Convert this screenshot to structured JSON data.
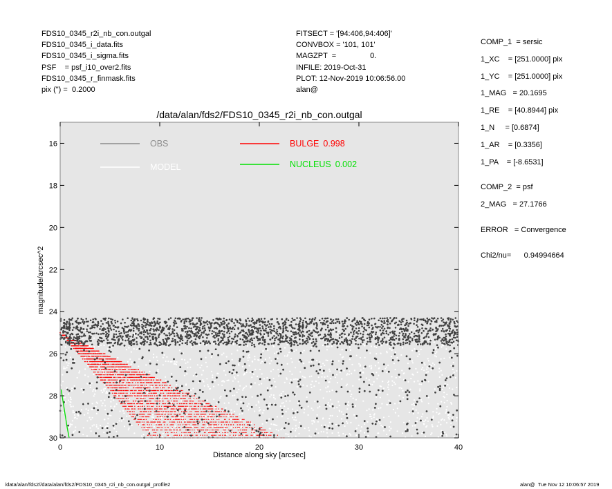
{
  "header_left": [
    "FDS10_0345_r2i_nb_con.outgal",
    "FDS10_0345_i_data.fits",
    "FDS10_0345_i_sigma.fits",
    "PSF    = psf_i10_over2.fits",
    "FDS10_0345_r_finmask.fits",
    "pix (\") =  0.2000"
  ],
  "header_mid": [
    "FITSECT = '[94:406,94:406]'",
    "CONVBOX = '101, 101'",
    "MAGZPT  =                0.",
    "INFILE: 2019-Oct-31",
    "PLOT: 12-Nov-2019 10:06:56.00",
    "alan@"
  ],
  "header_right": {
    "comp1": [
      "COMP_1  = sersic",
      "1_XC    = [251.0000] pix",
      "1_YC    = [251.0000] pix",
      "1_MAG   = 20.1695",
      "1_RE    = [40.8944] pix",
      "1_N     = [0.6874]",
      "1_AR    = [0.3356]",
      "1_PA    = [-8.6531]"
    ],
    "comp2": [
      "COMP_2  = psf",
      "2_MAG   = 27.1766"
    ],
    "error": "ERROR   = Convergence",
    "chi2": "Chi2/nu=      0.94994664"
  },
  "footer_left": "/data/alan/fds2//data/alan/fds2/FDS10_0345_r2i_nb_con.outgal_profile2",
  "footer_right": "alan@  Tue Nov 12 10:06:57 2019",
  "chart_data": {
    "type": "scatter",
    "title": "/data/alan/fds2/FDS10_0345_r2i_nb_con.outgal",
    "xlabel": "Distance along sky [arcsec]",
    "ylabel": "magnitude/arcsec^2",
    "xlim": [
      0,
      40
    ],
    "ylim": [
      30,
      15
    ],
    "y_inverted": true,
    "x_ticks": [
      0,
      10,
      20,
      30,
      40
    ],
    "y_ticks": [
      16,
      18,
      20,
      22,
      24,
      26,
      28,
      30
    ],
    "grid": false,
    "background": "#e6e6e6",
    "legend": [
      {
        "name": "OBS",
        "value": "",
        "color": "#8c8c8c"
      },
      {
        "name": "MODEL",
        "value": "",
        "color": "#ffffff"
      },
      {
        "name": "BULGE",
        "value": "0.998",
        "color": "#ff0000"
      },
      {
        "name": "NUCLEUS",
        "value": "0.002",
        "color": "#00e000"
      }
    ],
    "series": [
      {
        "name": "OBS",
        "color": "#404040",
        "description_points": {
          "x_range": [
            0,
            40
          ],
          "y_band": [
            24.3,
            25.6
          ],
          "scatter_y_range": [
            24.3,
            30
          ]
        }
      },
      {
        "name": "MODEL",
        "color": "#ffffff",
        "description_points": {
          "x_range": [
            0,
            40
          ],
          "y_range": [
            24.8,
            30
          ]
        }
      },
      {
        "name": "BULGE",
        "color": "#ff0000",
        "envelope": {
          "apex": [
            0,
            25.0
          ],
          "inner_edge_end": [
            9.0,
            30
          ],
          "outer_edge_end": [
            22.5,
            30
          ]
        }
      },
      {
        "name": "NUCLEUS",
        "color": "#00e000",
        "x": [
          0.1,
          0.3,
          0.5,
          0.7,
          0.9
        ],
        "y": [
          27.7,
          28.3,
          28.9,
          29.5,
          30.0
        ]
      }
    ]
  }
}
